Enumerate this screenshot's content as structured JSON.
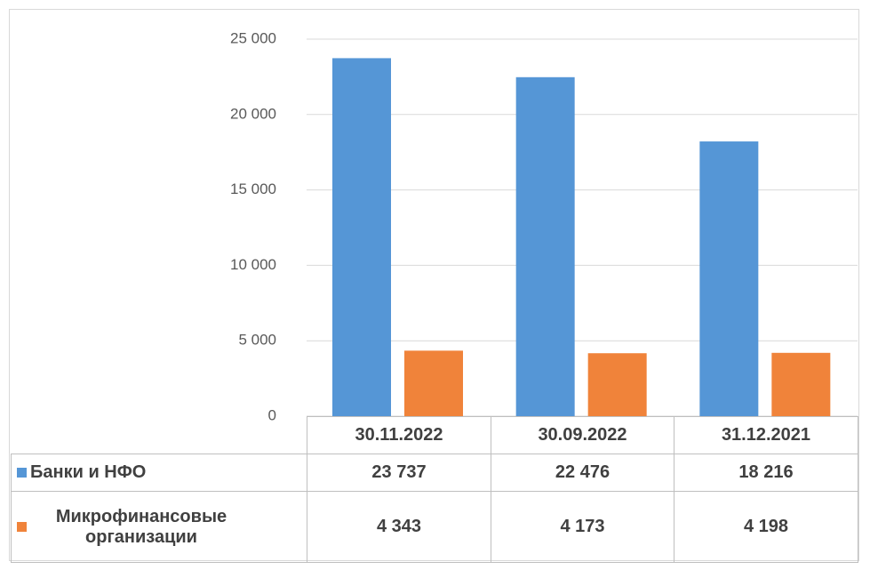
{
  "chart_data": {
    "type": "bar",
    "categories": [
      "30.11.2022",
      "30.09.2022",
      "31.12.2021"
    ],
    "series": [
      {
        "name": "Банки и НФО",
        "color": "#5596d6",
        "values": [
          23737,
          22476,
          18216
        ],
        "value_labels": [
          "23 737",
          "22 476",
          "18 216"
        ]
      },
      {
        "name": "Микрофинансовые организации",
        "color": "#f0833a",
        "values": [
          4343,
          4173,
          4198
        ],
        "value_labels": [
          "4 343",
          "4 173",
          "4 198"
        ]
      }
    ],
    "ylim": [
      0,
      25000
    ],
    "yticks": [
      0,
      {
        "value": 5000,
        "label": "5 000"
      },
      {
        "value": 10000,
        "label": "10 000"
      },
      {
        "value": 15000,
        "label": "15 000"
      },
      {
        "value": 20000,
        "label": "20 000"
      },
      {
        "value": 25000,
        "label": "25 000"
      }
    ],
    "grid": true
  }
}
